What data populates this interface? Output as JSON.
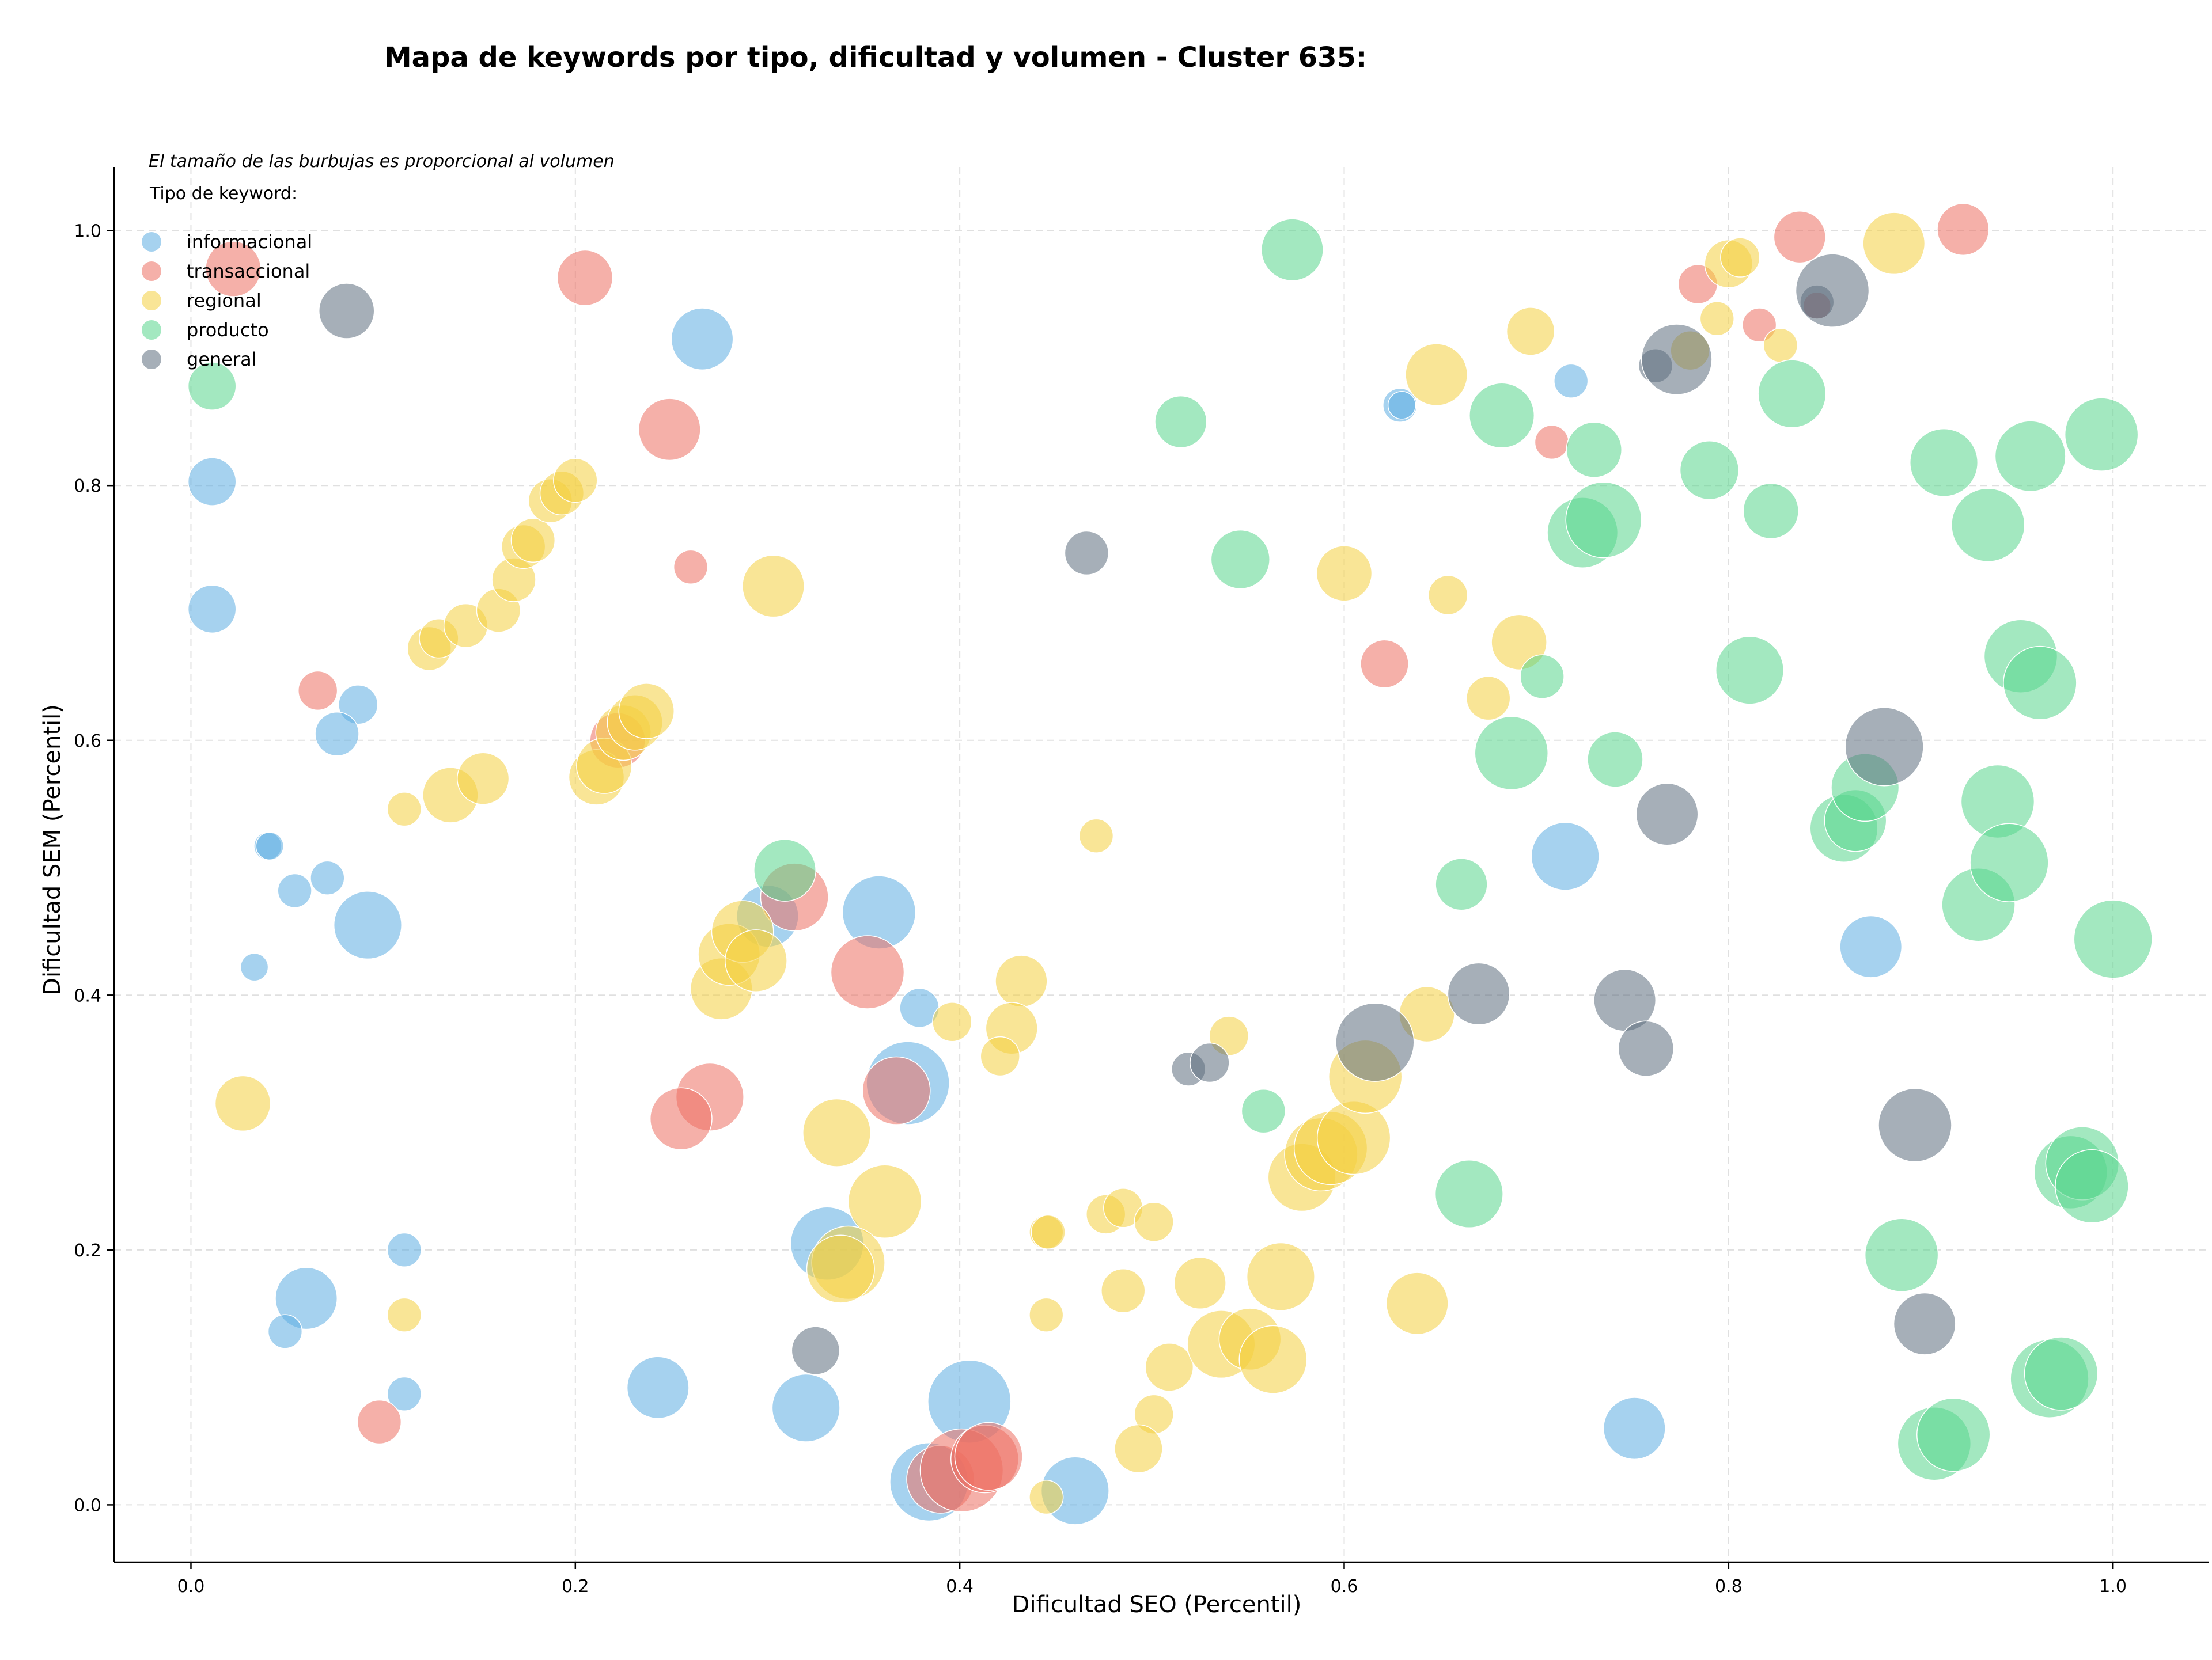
{
  "chart_data": {
    "type": "scatter",
    "title": "Mapa de keywords por tipo, dificultad y volumen - Cluster 635:",
    "xlabel": "Dificultad SEO (Percentil)",
    "ylabel": "Dificultad SEM (Percentil)",
    "xlim": [
      -0.04,
      1.05
    ],
    "ylim": [
      -0.045,
      1.05
    ],
    "xticks": [
      0.0,
      0.2,
      0.4,
      0.6,
      0.8,
      1.0
    ],
    "yticks": [
      0.0,
      0.2,
      0.4,
      0.6,
      0.8,
      1.0
    ],
    "xtick_labels": [
      "0.0",
      "0.2",
      "0.4",
      "0.6",
      "0.8",
      "1.0"
    ],
    "ytick_labels": [
      "0.0",
      "0.2",
      "0.4",
      "0.6",
      "0.8",
      "1.0"
    ],
    "grid": true,
    "note": "El tamaño de las burbujas es proporcional al volumen",
    "legend_title": "Tipo de keyword:",
    "legend_position": "top-left",
    "marker_opacity": 0.55,
    "series": [
      {
        "name": "informacional",
        "color": "#5DADE2",
        "points": [
          {
            "x": 0.011,
            "y": 0.803,
            "v": 3
          },
          {
            "x": 0.011,
            "y": 0.703,
            "v": 3
          },
          {
            "x": 0.087,
            "y": 0.628,
            "v": 2
          },
          {
            "x": 0.076,
            "y": 0.605,
            "v": 2.5
          },
          {
            "x": 0.04,
            "y": 0.517,
            "v": 1
          },
          {
            "x": 0.041,
            "y": 0.517,
            "v": 1
          },
          {
            "x": 0.054,
            "y": 0.482,
            "v": 1.5
          },
          {
            "x": 0.071,
            "y": 0.492,
            "v": 1.5
          },
          {
            "x": 0.092,
            "y": 0.455,
            "v": 6
          },
          {
            "x": 0.033,
            "y": 0.422,
            "v": 1
          },
          {
            "x": 0.111,
            "y": 0.2,
            "v": 1.5
          },
          {
            "x": 0.06,
            "y": 0.162,
            "v": 5
          },
          {
            "x": 0.049,
            "y": 0.136,
            "v": 1.5
          },
          {
            "x": 0.111,
            "y": 0.087,
            "v": 1.5
          },
          {
            "x": 0.266,
            "y": 0.915,
            "v": 5
          },
          {
            "x": 0.243,
            "y": 0.092,
            "v": 5
          },
          {
            "x": 0.3,
            "y": 0.462,
            "v": 5
          },
          {
            "x": 0.358,
            "y": 0.465,
            "v": 7
          },
          {
            "x": 0.379,
            "y": 0.39,
            "v": 2
          },
          {
            "x": 0.373,
            "y": 0.331,
            "v": 9
          },
          {
            "x": 0.331,
            "y": 0.205,
            "v": 7
          },
          {
            "x": 0.32,
            "y": 0.076,
            "v": 6
          },
          {
            "x": 0.405,
            "y": 0.081,
            "v": 9
          },
          {
            "x": 0.384,
            "y": 0.018,
            "v": 8
          },
          {
            "x": 0.46,
            "y": 0.011,
            "v": 6
          },
          {
            "x": 0.629,
            "y": 0.863,
            "v": 1.5
          },
          {
            "x": 0.63,
            "y": 0.863,
            "v": 1
          },
          {
            "x": 0.718,
            "y": 0.882,
            "v": 1.5
          },
          {
            "x": 0.715,
            "y": 0.509,
            "v": 6
          },
          {
            "x": 0.874,
            "y": 0.438,
            "v": 5
          },
          {
            "x": 0.751,
            "y": 0.06,
            "v": 5
          }
        ]
      },
      {
        "name": "transaccional",
        "color": "#EC7063",
        "points": [
          {
            "x": 0.022,
            "y": 0.97,
            "v": 4
          },
          {
            "x": 0.066,
            "y": 0.639,
            "v": 2
          },
          {
            "x": 0.098,
            "y": 0.065,
            "v": 2.5
          },
          {
            "x": 0.205,
            "y": 0.963,
            "v": 4
          },
          {
            "x": 0.249,
            "y": 0.844,
            "v": 5
          },
          {
            "x": 0.26,
            "y": 0.736,
            "v": 1.5
          },
          {
            "x": 0.222,
            "y": 0.6,
            "v": 4
          },
          {
            "x": 0.314,
            "y": 0.477,
            "v": 6
          },
          {
            "x": 0.352,
            "y": 0.418,
            "v": 7
          },
          {
            "x": 0.27,
            "y": 0.32,
            "v": 6
          },
          {
            "x": 0.255,
            "y": 0.303,
            "v": 5
          },
          {
            "x": 0.367,
            "y": 0.325,
            "v": 6
          },
          {
            "x": 0.39,
            "y": 0.02,
            "v": 6
          },
          {
            "x": 0.401,
            "y": 0.027,
            "v": 9
          },
          {
            "x": 0.413,
            "y": 0.036,
            "v": 6
          },
          {
            "x": 0.415,
            "y": 0.038,
            "v": 6
          },
          {
            "x": 0.621,
            "y": 0.66,
            "v": 3
          },
          {
            "x": 0.708,
            "y": 0.834,
            "v": 1.5
          },
          {
            "x": 0.784,
            "y": 0.958,
            "v": 2
          },
          {
            "x": 0.837,
            "y": 0.995,
            "v": 3.5
          },
          {
            "x": 0.816,
            "y": 0.926,
            "v": 1.5
          },
          {
            "x": 0.846,
            "y": 0.941,
            "v": 1
          },
          {
            "x": 0.922,
            "y": 1.001,
            "v": 3.5
          }
        ]
      },
      {
        "name": "regional",
        "color": "#F4D03F",
        "points": [
          {
            "x": 0.027,
            "y": 0.315,
            "v": 4
          },
          {
            "x": 0.111,
            "y": 0.546,
            "v": 1.5
          },
          {
            "x": 0.111,
            "y": 0.149,
            "v": 1.5
          },
          {
            "x": 0.124,
            "y": 0.672,
            "v": 2.5
          },
          {
            "x": 0.129,
            "y": 0.68,
            "v": 2
          },
          {
            "x": 0.135,
            "y": 0.557,
            "v": 4
          },
          {
            "x": 0.143,
            "y": 0.69,
            "v": 2.5
          },
          {
            "x": 0.152,
            "y": 0.57,
            "v": 3.5
          },
          {
            "x": 0.16,
            "y": 0.702,
            "v": 2.5
          },
          {
            "x": 0.168,
            "y": 0.726,
            "v": 2.5
          },
          {
            "x": 0.173,
            "y": 0.752,
            "v": 2.5
          },
          {
            "x": 0.178,
            "y": 0.757,
            "v": 2.5
          },
          {
            "x": 0.187,
            "y": 0.788,
            "v": 2.5
          },
          {
            "x": 0.193,
            "y": 0.794,
            "v": 2.5
          },
          {
            "x": 0.2,
            "y": 0.804,
            "v": 2.5
          },
          {
            "x": 0.211,
            "y": 0.571,
            "v": 4
          },
          {
            "x": 0.215,
            "y": 0.58,
            "v": 4
          },
          {
            "x": 0.225,
            "y": 0.606,
            "v": 4
          },
          {
            "x": 0.231,
            "y": 0.614,
            "v": 4
          },
          {
            "x": 0.237,
            "y": 0.623,
            "v": 4
          },
          {
            "x": 0.303,
            "y": 0.721,
            "v": 5
          },
          {
            "x": 0.276,
            "y": 0.405,
            "v": 5
          },
          {
            "x": 0.28,
            "y": 0.432,
            "v": 5
          },
          {
            "x": 0.287,
            "y": 0.45,
            "v": 5
          },
          {
            "x": 0.294,
            "y": 0.427,
            "v": 5
          },
          {
            "x": 0.336,
            "y": 0.292,
            "v": 6
          },
          {
            "x": 0.361,
            "y": 0.238,
            "v": 7
          },
          {
            "x": 0.342,
            "y": 0.19,
            "v": 7
          },
          {
            "x": 0.338,
            "y": 0.185,
            "v": 6
          },
          {
            "x": 0.396,
            "y": 0.379,
            "v": 2
          },
          {
            "x": 0.432,
            "y": 0.411,
            "v": 3.5
          },
          {
            "x": 0.427,
            "y": 0.374,
            "v": 3.5
          },
          {
            "x": 0.421,
            "y": 0.352,
            "v": 2
          },
          {
            "x": 0.445,
            "y": 0.214,
            "v": 1.5
          },
          {
            "x": 0.446,
            "y": 0.214,
            "v": 1.5
          },
          {
            "x": 0.445,
            "y": 0.149,
            "v": 1.5
          },
          {
            "x": 0.445,
            "y": 0.006,
            "v": 1.5
          },
          {
            "x": 0.471,
            "y": 0.525,
            "v": 1.5
          },
          {
            "x": 0.476,
            "y": 0.228,
            "v": 2
          },
          {
            "x": 0.485,
            "y": 0.233,
            "v": 2
          },
          {
            "x": 0.501,
            "y": 0.222,
            "v": 2
          },
          {
            "x": 0.485,
            "y": 0.168,
            "v": 2.5
          },
          {
            "x": 0.501,
            "y": 0.071,
            "v": 2
          },
          {
            "x": 0.493,
            "y": 0.044,
            "v": 3
          },
          {
            "x": 0.509,
            "y": 0.108,
            "v": 3
          },
          {
            "x": 0.525,
            "y": 0.174,
            "v": 3.5
          },
          {
            "x": 0.54,
            "y": 0.368,
            "v": 2
          },
          {
            "x": 0.536,
            "y": 0.126,
            "v": 6
          },
          {
            "x": 0.551,
            "y": 0.13,
            "v": 5
          },
          {
            "x": 0.563,
            "y": 0.114,
            "v": 6
          },
          {
            "x": 0.567,
            "y": 0.179,
            "v": 6
          },
          {
            "x": 0.578,
            "y": 0.257,
            "v": 6
          },
          {
            "x": 0.588,
            "y": 0.275,
            "v": 7
          },
          {
            "x": 0.593,
            "y": 0.28,
            "v": 7
          },
          {
            "x": 0.605,
            "y": 0.288,
            "v": 7
          },
          {
            "x": 0.611,
            "y": 0.336,
            "v": 7
          },
          {
            "x": 0.6,
            "y": 0.731,
            "v": 4
          },
          {
            "x": 0.638,
            "y": 0.158,
            "v": 5
          },
          {
            "x": 0.643,
            "y": 0.385,
            "v": 4
          },
          {
            "x": 0.648,
            "y": 0.887,
            "v": 5
          },
          {
            "x": 0.654,
            "y": 0.714,
            "v": 2
          },
          {
            "x": 0.675,
            "y": 0.633,
            "v": 2.5
          },
          {
            "x": 0.691,
            "y": 0.677,
            "v": 4
          },
          {
            "x": 0.697,
            "y": 0.921,
            "v": 3
          },
          {
            "x": 0.78,
            "y": 0.906,
            "v": 2
          },
          {
            "x": 0.794,
            "y": 0.931,
            "v": 1.5
          },
          {
            "x": 0.8,
            "y": 0.974,
            "v": 3
          },
          {
            "x": 0.806,
            "y": 0.979,
            "v": 2
          },
          {
            "x": 0.827,
            "y": 0.91,
            "v": 1.5
          },
          {
            "x": 0.886,
            "y": 0.99,
            "v": 5
          }
        ]
      },
      {
        "name": "producto",
        "color": "#58D68D",
        "points": [
          {
            "x": 0.011,
            "y": 0.878,
            "v": 3
          },
          {
            "x": 0.309,
            "y": 0.498,
            "v": 5
          },
          {
            "x": 0.515,
            "y": 0.85,
            "v": 3.5
          },
          {
            "x": 0.546,
            "y": 0.742,
            "v": 4.5
          },
          {
            "x": 0.558,
            "y": 0.309,
            "v": 2.5
          },
          {
            "x": 0.573,
            "y": 0.985,
            "v": 5
          },
          {
            "x": 0.661,
            "y": 0.487,
            "v": 3.5
          },
          {
            "x": 0.665,
            "y": 0.244,
            "v": 6
          },
          {
            "x": 0.682,
            "y": 0.855,
            "v": 5.5
          },
          {
            "x": 0.687,
            "y": 0.59,
            "v": 7
          },
          {
            "x": 0.703,
            "y": 0.65,
            "v": 2.5
          },
          {
            "x": 0.724,
            "y": 0.763,
            "v": 6.5
          },
          {
            "x": 0.735,
            "y": 0.773,
            "v": 7.5
          },
          {
            "x": 0.73,
            "y": 0.828,
            "v": 4
          },
          {
            "x": 0.741,
            "y": 0.585,
            "v": 4
          },
          {
            "x": 0.79,
            "y": 0.812,
            "v": 4.5
          },
          {
            "x": 0.811,
            "y": 0.655,
            "v": 6
          },
          {
            "x": 0.822,
            "y": 0.78,
            "v": 4
          },
          {
            "x": 0.833,
            "y": 0.872,
            "v": 6
          },
          {
            "x": 0.86,
            "y": 0.531,
            "v": 6
          },
          {
            "x": 0.866,
            "y": 0.537,
            "v": 5
          },
          {
            "x": 0.871,
            "y": 0.563,
            "v": 6
          },
          {
            "x": 0.89,
            "y": 0.196,
            "v": 7
          },
          {
            "x": 0.907,
            "y": 0.048,
            "v": 7
          },
          {
            "x": 0.917,
            "y": 0.055,
            "v": 7
          },
          {
            "x": 0.912,
            "y": 0.818,
            "v": 6
          },
          {
            "x": 0.93,
            "y": 0.471,
            "v": 7
          },
          {
            "x": 0.935,
            "y": 0.769,
            "v": 7
          },
          {
            "x": 0.94,
            "y": 0.552,
            "v": 7
          },
          {
            "x": 0.946,
            "y": 0.504,
            "v": 8
          },
          {
            "x": 0.952,
            "y": 0.666,
            "v": 7
          },
          {
            "x": 0.957,
            "y": 0.823,
            "v": 6.5
          },
          {
            "x": 0.962,
            "y": 0.645,
            "v": 7
          },
          {
            "x": 0.967,
            "y": 0.099,
            "v": 8
          },
          {
            "x": 0.973,
            "y": 0.103,
            "v": 7
          },
          {
            "x": 0.978,
            "y": 0.261,
            "v": 7
          },
          {
            "x": 0.984,
            "y": 0.268,
            "v": 7
          },
          {
            "x": 0.989,
            "y": 0.25,
            "v": 7
          },
          {
            "x": 0.994,
            "y": 0.84,
            "v": 7
          },
          {
            "x": 1.0,
            "y": 0.444,
            "v": 8
          }
        ]
      },
      {
        "name": "general",
        "color": "#5D6D7E",
        "points": [
          {
            "x": 0.081,
            "y": 0.937,
            "v": 4
          },
          {
            "x": 0.325,
            "y": 0.121,
            "v": 3
          },
          {
            "x": 0.466,
            "y": 0.747,
            "v": 2.5
          },
          {
            "x": 0.519,
            "y": 0.342,
            "v": 1.5
          },
          {
            "x": 0.53,
            "y": 0.347,
            "v": 2
          },
          {
            "x": 0.616,
            "y": 0.363,
            "v": 8
          },
          {
            "x": 0.67,
            "y": 0.401,
            "v": 5
          },
          {
            "x": 0.746,
            "y": 0.396,
            "v": 5
          },
          {
            "x": 0.757,
            "y": 0.358,
            "v": 4
          },
          {
            "x": 0.762,
            "y": 0.894,
            "v": 1.5
          },
          {
            "x": 0.768,
            "y": 0.542,
            "v": 5
          },
          {
            "x": 0.773,
            "y": 0.899,
            "v": 6.5
          },
          {
            "x": 0.846,
            "y": 0.944,
            "v": 1.5
          },
          {
            "x": 0.854,
            "y": 0.953,
            "v": 7
          },
          {
            "x": 0.881,
            "y": 0.595,
            "v": 8
          },
          {
            "x": 0.897,
            "y": 0.298,
            "v": 7
          },
          {
            "x": 0.902,
            "y": 0.142,
            "v": 5
          }
        ]
      }
    ]
  }
}
